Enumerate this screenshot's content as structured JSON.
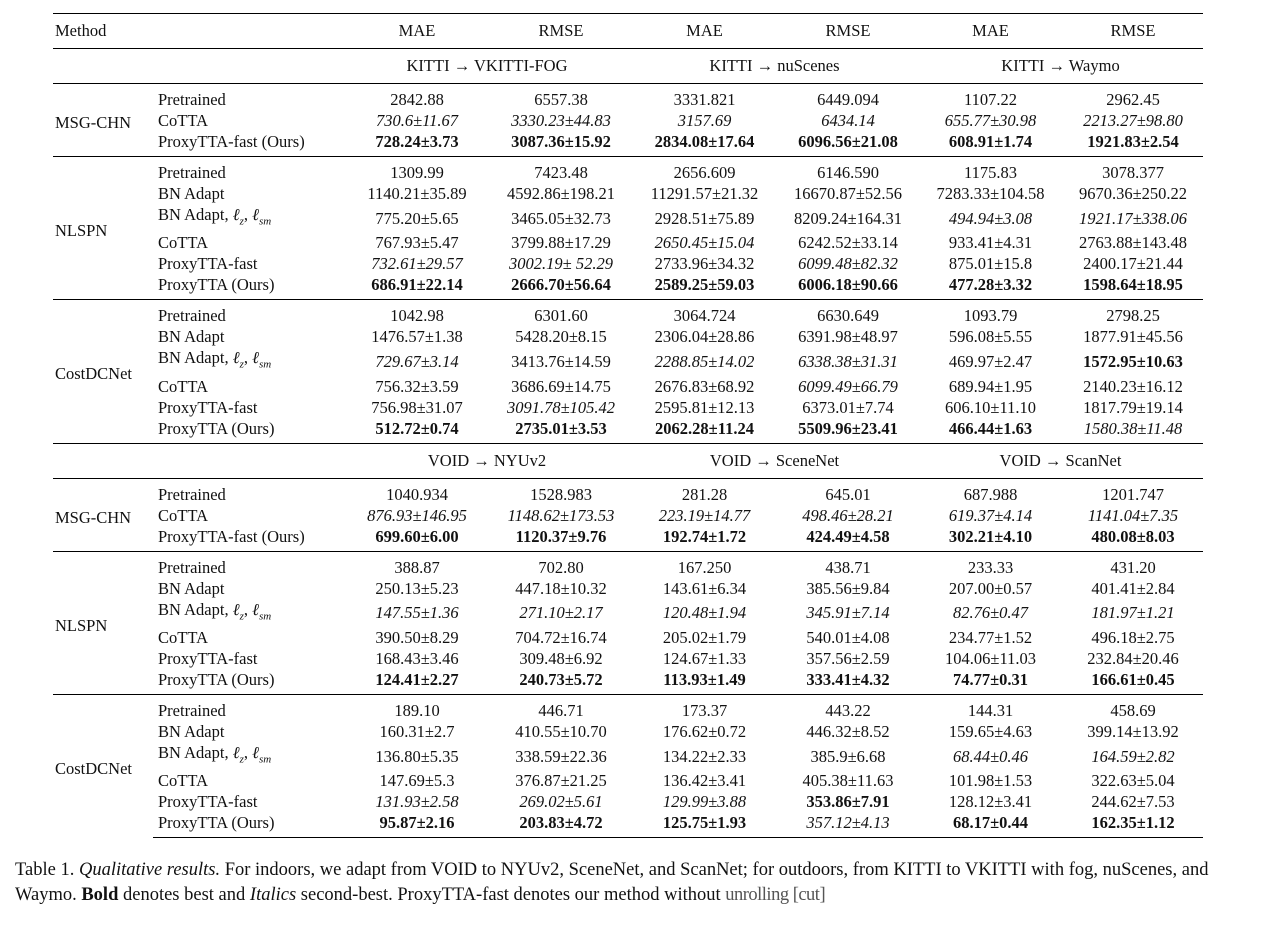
{
  "header": {
    "method": "Method",
    "cols": [
      "MAE",
      "RMSE",
      "MAE",
      "RMSE",
      "MAE",
      "RMSE"
    ]
  },
  "sections": [
    {
      "domains": [
        "KITTI → VKITTI-FOG",
        "KITTI → nuScenes",
        "KITTI → Waymo"
      ],
      "groups": [
        {
          "method": "MSG-CHN",
          "rows": [
            {
              "name": "Pretrained",
              "vals": [
                "2842.88",
                "6557.38",
                "3331.821",
                "6449.094",
                "1107.22",
                "2962.45"
              ],
              "fmt": "nnnnnn"
            },
            {
              "name": "CoTTA",
              "vals": [
                "730.6±11.67",
                "3330.23±44.83",
                "3157.69",
                "6434.14",
                "655.77±30.98",
                "2213.27±98.80"
              ],
              "fmt": "iiiiii"
            },
            {
              "name": "ProxyTTA-fast (Ours)",
              "vals": [
                "728.24±3.73",
                "3087.36±15.92",
                "2834.08±17.64",
                "6096.56±21.08",
                "608.91±1.74",
                "1921.83±2.54"
              ],
              "fmt": "bbbbbb"
            }
          ]
        },
        {
          "method": "NLSPN",
          "rows": [
            {
              "name": "Pretrained",
              "vals": [
                "1309.99",
                "7423.48",
                "2656.609",
                "6146.590",
                "1175.83",
                "3078.377"
              ],
              "fmt": "nnnnnn"
            },
            {
              "name": "BN Adapt",
              "vals": [
                "1140.21±35.89",
                "4592.86±198.21",
                "11291.57±21.32",
                "16670.87±52.56",
                "7283.33±104.58",
                "9670.36±250.22"
              ],
              "fmt": "nnnnnn"
            },
            {
              "name": "BN Adapt, ℓz, ℓsm",
              "vals": [
                "775.20±5.65",
                "3465.05±32.73",
                "2928.51±75.89",
                "8209.24±164.31",
                "494.94±3.08",
                "1921.17±338.06"
              ],
              "fmt": "nnnnii"
            },
            {
              "name": "CoTTA",
              "vals": [
                "767.93±5.47",
                "3799.88±17.29",
                "2650.45±15.04",
                "6242.52±33.14",
                "933.41±4.31",
                "2763.88±143.48"
              ],
              "fmt": "nninnn"
            },
            {
              "name": "ProxyTTA-fast",
              "vals": [
                "732.61±29.57",
                "3002.19± 52.29",
                "2733.96±34.32",
                "6099.48±82.32",
                "875.01±15.8",
                "2400.17±21.44"
              ],
              "fmt": "iininn"
            },
            {
              "name": "ProxyTTA (Ours)",
              "vals": [
                "686.91±22.14",
                "2666.70±56.64",
                "2589.25±59.03",
                "6006.18±90.66",
                "477.28±3.32",
                "1598.64±18.95"
              ],
              "fmt": "bbbbbb"
            }
          ]
        },
        {
          "method": "CostDCNet",
          "rows": [
            {
              "name": "Pretrained",
              "vals": [
                "1042.98",
                "6301.60",
                "3064.724",
                "6630.649",
                "1093.79",
                "2798.25"
              ],
              "fmt": "nnnnnn"
            },
            {
              "name": "BN Adapt",
              "vals": [
                "1476.57±1.38",
                "5428.20±8.15",
                "2306.04±28.86",
                "6391.98±48.97",
                "596.08±5.55",
                "1877.91±45.56"
              ],
              "fmt": "nnnnnn"
            },
            {
              "name": "BN Adapt, ℓz, ℓsm",
              "vals": [
                "729.67±3.14",
                "3413.76±14.59",
                "2288.85±14.02",
                "6338.38±31.31",
                "469.97±2.47",
                "1572.95±10.63"
              ],
              "fmt": "iniinb"
            },
            {
              "name": "CoTTA",
              "vals": [
                "756.32±3.59",
                "3686.69±14.75",
                "2676.83±68.92",
                "6099.49±66.79",
                "689.94±1.95",
                "2140.23±16.12"
              ],
              "fmt": "nnninn"
            },
            {
              "name": "ProxyTTA-fast",
              "vals": [
                "756.98±31.07",
                "3091.78±105.42",
                "2595.81±12.13",
                "6373.01±7.74",
                "606.10±11.10",
                "1817.79±19.14"
              ],
              "fmt": "ninnnn"
            },
            {
              "name": "ProxyTTA (Ours)",
              "vals": [
                "512.72±0.74",
                "2735.01±3.53",
                "2062.28±11.24",
                "5509.96±23.41",
                "466.44±1.63",
                "1580.38±11.48"
              ],
              "fmt": "bbbbbi"
            }
          ]
        }
      ]
    },
    {
      "domains": [
        "VOID → NYUv2",
        "VOID → SceneNet",
        "VOID → ScanNet"
      ],
      "groups": [
        {
          "method": "MSG-CHN",
          "rows": [
            {
              "name": "Pretrained",
              "vals": [
                "1040.934",
                "1528.983",
                "281.28",
                "645.01",
                "687.988",
                "1201.747"
              ],
              "fmt": "nnnnnn"
            },
            {
              "name": "CoTTA",
              "vals": [
                "876.93±146.95",
                "1148.62±173.53",
                "223.19±14.77",
                "498.46±28.21",
                "619.37±4.14",
                "1141.04±7.35"
              ],
              "fmt": "iiiiii"
            },
            {
              "name": "ProxyTTA-fast (Ours)",
              "vals": [
                "699.60±6.00",
                "1120.37±9.76",
                "192.74±1.72",
                "424.49±4.58",
                "302.21±4.10",
                "480.08±8.03"
              ],
              "fmt": "bbbbbb"
            }
          ]
        },
        {
          "method": "NLSPN",
          "rows": [
            {
              "name": "Pretrained",
              "vals": [
                "388.87",
                "702.80",
                "167.250",
                "438.71",
                "233.33",
                "431.20"
              ],
              "fmt": "nnnnnn"
            },
            {
              "name": "BN Adapt",
              "vals": [
                "250.13±5.23",
                "447.18±10.32",
                "143.61±6.34",
                "385.56±9.84",
                "207.00±0.57",
                "401.41±2.84"
              ],
              "fmt": "nnnnnn"
            },
            {
              "name": "BN Adapt, ℓz, ℓsm",
              "vals": [
                "147.55±1.36",
                "271.10±2.17",
                "120.48±1.94",
                "345.91±7.14",
                "82.76±0.47",
                "181.97±1.21"
              ],
              "fmt": "iiiiii"
            },
            {
              "name": "CoTTA",
              "vals": [
                "390.50±8.29",
                "704.72±16.74",
                "205.02±1.79",
                "540.01±4.08",
                "234.77±1.52",
                "496.18±2.75"
              ],
              "fmt": "nnnnnn"
            },
            {
              "name": "ProxyTTA-fast",
              "vals": [
                "168.43±3.46",
                "309.48±6.92",
                "124.67±1.33",
                "357.56±2.59",
                "104.06±11.03",
                "232.84±20.46"
              ],
              "fmt": "nnnnnn"
            },
            {
              "name": "ProxyTTA (Ours)",
              "vals": [
                "124.41±2.27",
                "240.73±5.72",
                "113.93±1.49",
                "333.41±4.32",
                "74.77±0.31",
                "166.61±0.45"
              ],
              "fmt": "bbbbbb"
            }
          ]
        },
        {
          "method": "CostDCNet",
          "rows": [
            {
              "name": "Pretrained",
              "vals": [
                "189.10",
                "446.71",
                "173.37",
                "443.22",
                "144.31",
                "458.69"
              ],
              "fmt": "nnnnnn"
            },
            {
              "name": "BN Adapt",
              "vals": [
                "160.31±2.7",
                "410.55±10.70",
                "176.62±0.72",
                "446.32±8.52",
                "159.65±4.63",
                "399.14±13.92"
              ],
              "fmt": "nnnnnn"
            },
            {
              "name": "BN Adapt, ℓz, ℓsm",
              "vals": [
                "136.80±5.35",
                "338.59±22.36",
                "134.22±2.33",
                "385.9±6.68",
                "68.44±0.46",
                "164.59±2.82"
              ],
              "fmt": "nnnnii"
            },
            {
              "name": "CoTTA",
              "vals": [
                "147.69±5.3",
                "376.87±21.25",
                "136.42±3.41",
                "405.38±11.63",
                "101.98±1.53",
                "322.63±5.04"
              ],
              "fmt": "nnnnnn"
            },
            {
              "name": "ProxyTTA-fast",
              "vals": [
                "131.93±2.58",
                "269.02±5.61",
                "129.99±3.88",
                "353.86±7.91",
                "128.12±3.41",
                "244.62±7.53"
              ],
              "fmt": "iiibnn"
            },
            {
              "name": "ProxyTTA (Ours)",
              "vals": [
                "95.87±2.16",
                "203.83±4.72",
                "125.75±1.93",
                "357.12±4.13",
                "68.17±0.44",
                "162.35±1.12"
              ],
              "fmt": "bbbibb"
            }
          ]
        }
      ]
    }
  ],
  "caption": {
    "label": "Table 1.",
    "title": "Qualitative results.",
    "text1": " For indoors, we adapt from VOID to NYUv2, SceneNet, and ScanNet; for outdoors, from KITTI to VKITTI with fog, nuScenes, and Waymo. ",
    "bold": "Bold",
    "text2": " denotes best and ",
    "italics": "Italics",
    "text3": " second-best. ProxyTTA-fast denotes our method without ",
    "cut": "unrolling [cut]"
  }
}
